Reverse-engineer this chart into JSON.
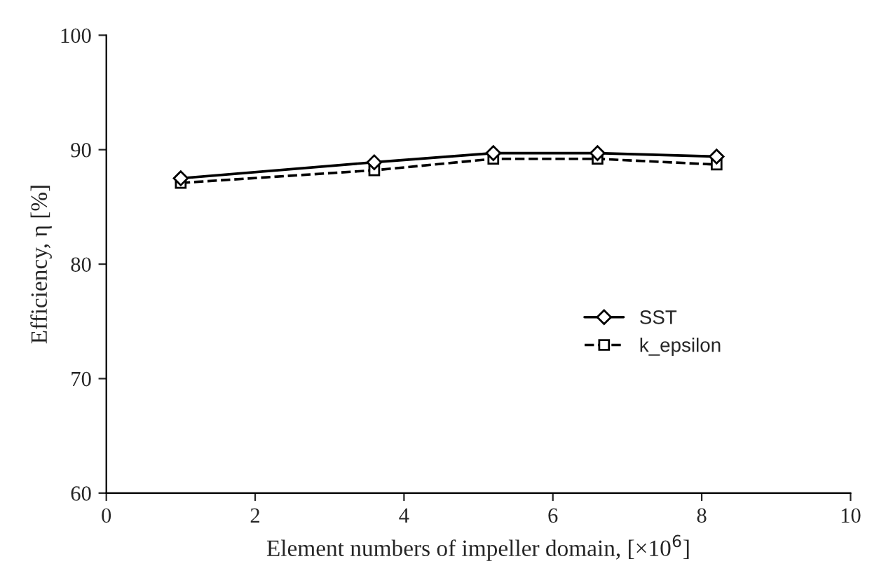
{
  "chart_data": {
    "type": "line",
    "xlabel": "Element numbers of impeller domain, [×10$^{6}$]",
    "ylabel": "Efficiency, η [%]",
    "x": [
      1,
      3.6,
      5.2,
      6.6,
      8.2
    ],
    "series": [
      {
        "name": "SST",
        "color": "#000000",
        "values": [
          87.5,
          88.9,
          89.7,
          89.7,
          89.4
        ],
        "marker": "diamond",
        "line_style": "solid"
      },
      {
        "name": "k_epsilon",
        "color": "#000000",
        "values": [
          87.1,
          88.2,
          89.2,
          89.2,
          88.7
        ],
        "marker": "square",
        "line_style": "dashed"
      }
    ],
    "xlim": [
      0,
      10
    ],
    "xticks": [
      0,
      2,
      4,
      6,
      8,
      10
    ],
    "ylim": [
      60,
      100
    ],
    "yticks": [
      60,
      70,
      80,
      90,
      100
    ],
    "grid": false,
    "legend": "right"
  }
}
